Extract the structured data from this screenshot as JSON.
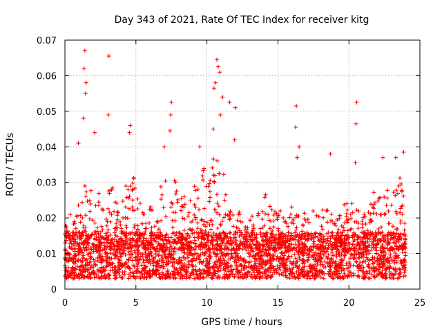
{
  "chart_data": {
    "type": "scatter",
    "title": "Day 343 of 2021, Rate Of TEC Index for receiver kitg",
    "xlabel": "GPS time / hours",
    "ylabel": "ROTI / TECUs",
    "xlim": [
      0,
      25
    ],
    "ylim": [
      0,
      0.07
    ],
    "xticks": [
      0,
      5,
      10,
      15,
      20,
      25
    ],
    "xtick_labels": [
      "0",
      "5",
      "10",
      "15",
      "20",
      "25"
    ],
    "yticks": [
      0,
      0.01,
      0.02,
      0.03,
      0.04,
      0.05,
      0.06,
      0.07
    ],
    "ytick_labels": [
      "0",
      "0.01",
      "0.02",
      "0.03",
      "0.04",
      "0.05",
      "0.06",
      "0.07"
    ],
    "grid": true,
    "marker": "+",
    "color": "#ff0000",
    "data_span_hours": [
      0,
      24
    ],
    "baseline_band": [
      0.003,
      0.016
    ],
    "notable_points": [
      {
        "x": 1.4,
        "y": 0.067
      },
      {
        "x": 1.35,
        "y": 0.062
      },
      {
        "x": 1.5,
        "y": 0.058
      },
      {
        "x": 1.45,
        "y": 0.055
      },
      {
        "x": 1.3,
        "y": 0.048
      },
      {
        "x": 0.95,
        "y": 0.041
      },
      {
        "x": 2.1,
        "y": 0.044
      },
      {
        "x": 3.1,
        "y": 0.0655
      },
      {
        "x": 3.05,
        "y": 0.049
      },
      {
        "x": 4.6,
        "y": 0.046
      },
      {
        "x": 4.55,
        "y": 0.044
      },
      {
        "x": 7.5,
        "y": 0.0525
      },
      {
        "x": 7.45,
        "y": 0.049
      },
      {
        "x": 7.4,
        "y": 0.0445
      },
      {
        "x": 7.0,
        "y": 0.04
      },
      {
        "x": 9.5,
        "y": 0.04
      },
      {
        "x": 10.5,
        "y": 0.0565
      },
      {
        "x": 10.7,
        "y": 0.0645
      },
      {
        "x": 10.8,
        "y": 0.0625
      },
      {
        "x": 10.9,
        "y": 0.061
      },
      {
        "x": 10.6,
        "y": 0.058
      },
      {
        "x": 11.1,
        "y": 0.054
      },
      {
        "x": 10.95,
        "y": 0.049
      },
      {
        "x": 11.6,
        "y": 0.0525
      },
      {
        "x": 12.0,
        "y": 0.051
      },
      {
        "x": 11.95,
        "y": 0.042
      },
      {
        "x": 10.45,
        "y": 0.045
      },
      {
        "x": 16.3,
        "y": 0.0515
      },
      {
        "x": 16.25,
        "y": 0.0455
      },
      {
        "x": 16.5,
        "y": 0.04
      },
      {
        "x": 16.35,
        "y": 0.037
      },
      {
        "x": 18.7,
        "y": 0.038
      },
      {
        "x": 20.55,
        "y": 0.0525
      },
      {
        "x": 20.5,
        "y": 0.0465
      },
      {
        "x": 20.45,
        "y": 0.0355
      },
      {
        "x": 22.4,
        "y": 0.037
      },
      {
        "x": 23.3,
        "y": 0.037
      },
      {
        "x": 23.85,
        "y": 0.0385
      }
    ],
    "activity_profile": [
      {
        "x": 0.0,
        "upper": 0.018
      },
      {
        "x": 1.0,
        "upper": 0.026
      },
      {
        "x": 1.5,
        "upper": 0.03
      },
      {
        "x": 2.5,
        "upper": 0.027
      },
      {
        "x": 3.2,
        "upper": 0.03
      },
      {
        "x": 4.0,
        "upper": 0.024
      },
      {
        "x": 4.6,
        "upper": 0.035
      },
      {
        "x": 5.5,
        "upper": 0.022
      },
      {
        "x": 6.5,
        "upper": 0.03
      },
      {
        "x": 7.4,
        "upper": 0.035
      },
      {
        "x": 8.5,
        "upper": 0.026
      },
      {
        "x": 9.5,
        "upper": 0.033
      },
      {
        "x": 10.5,
        "upper": 0.038
      },
      {
        "x": 11.3,
        "upper": 0.034
      },
      {
        "x": 12.2,
        "upper": 0.022
      },
      {
        "x": 13.0,
        "upper": 0.02
      },
      {
        "x": 14.2,
        "upper": 0.029
      },
      {
        "x": 15.0,
        "upper": 0.022
      },
      {
        "x": 16.0,
        "upper": 0.024
      },
      {
        "x": 17.0,
        "upper": 0.021
      },
      {
        "x": 18.0,
        "upper": 0.024
      },
      {
        "x": 19.0,
        "upper": 0.022
      },
      {
        "x": 20.0,
        "upper": 0.025
      },
      {
        "x": 21.0,
        "upper": 0.021
      },
      {
        "x": 22.3,
        "upper": 0.032
      },
      {
        "x": 23.0,
        "upper": 0.027
      },
      {
        "x": 23.6,
        "upper": 0.032
      },
      {
        "x": 24.0,
        "upper": 0.024
      }
    ]
  }
}
